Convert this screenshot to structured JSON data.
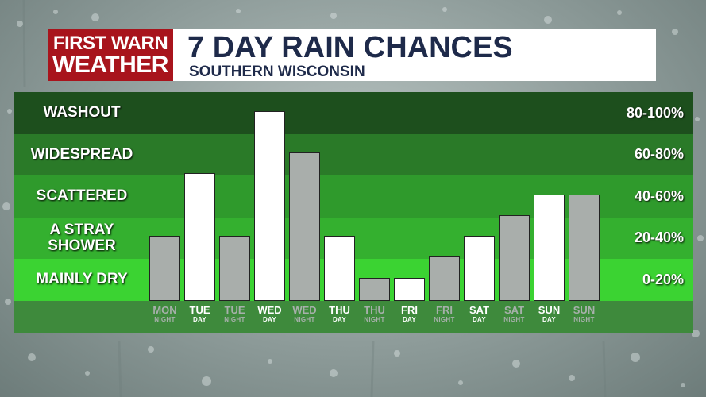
{
  "header": {
    "logo_line1": "FIRST WARN",
    "logo_line2": "WEATHER",
    "title": "7 DAY RAIN CHANCES",
    "subtitle": "SOUTHERN WISCONSIN"
  },
  "colors": {
    "logo_red": "#a8141c",
    "title_navy": "#1e2a4a",
    "day_bar": "#ffffff",
    "night_bar": "#a9aeab",
    "band_colors": [
      "#1d4f1d",
      "#2a7a28",
      "#2f9a2c",
      "#34b02f",
      "#3bd332"
    ]
  },
  "chart_data": {
    "type": "bar",
    "ylim": [
      0,
      100
    ],
    "bands": [
      {
        "name": "WASHOUT",
        "range": "80-100%",
        "min": 80,
        "max": 100
      },
      {
        "name": "WIDESPREAD",
        "range": "60-80%",
        "min": 60,
        "max": 80
      },
      {
        "name": "SCATTERED",
        "range": "40-60%",
        "min": 40,
        "max": 60
      },
      {
        "name": "A STRAY SHOWER",
        "range": "20-40%",
        "min": 20,
        "max": 40
      },
      {
        "name": "MAINLY DRY",
        "range": "0-20%",
        "min": 0,
        "max": 20
      }
    ],
    "categories": [
      {
        "day": "MON",
        "period": "NIGHT",
        "value": 31
      },
      {
        "day": "TUE",
        "period": "DAY",
        "value": 61
      },
      {
        "day": "TUE",
        "period": "NIGHT",
        "value": 31
      },
      {
        "day": "WED",
        "period": "DAY",
        "value": 91
      },
      {
        "day": "WED",
        "period": "NIGHT",
        "value": 71
      },
      {
        "day": "THU",
        "period": "DAY",
        "value": 31
      },
      {
        "day": "THU",
        "period": "NIGHT",
        "value": 11
      },
      {
        "day": "FRI",
        "period": "DAY",
        "value": 11
      },
      {
        "day": "FRI",
        "period": "NIGHT",
        "value": 21
      },
      {
        "day": "SAT",
        "period": "DAY",
        "value": 31
      },
      {
        "day": "SAT",
        "period": "NIGHT",
        "value": 41
      },
      {
        "day": "SUN",
        "period": "DAY",
        "value": 51
      },
      {
        "day": "SUN",
        "period": "NIGHT",
        "value": 51
      }
    ]
  }
}
